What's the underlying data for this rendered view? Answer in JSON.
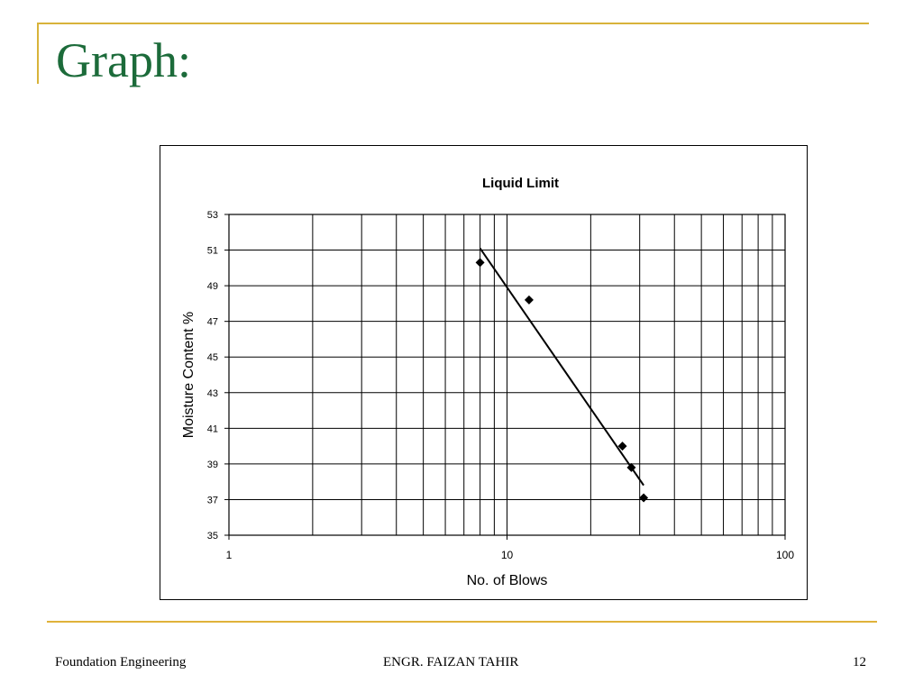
{
  "slide": {
    "title": "Graph:",
    "accent_color": "#d8b33a",
    "title_color": "#1c6b3a"
  },
  "footer": {
    "left": "Foundation Engineering",
    "center": "ENGR. FAIZAN TAHIR",
    "page_number": "12"
  },
  "chart_data": {
    "type": "scatter",
    "title": "Liquid Limit",
    "xlabel": "No. of Blows",
    "ylabel": "Moisture Content %",
    "x_scale": "log",
    "xlim": [
      1,
      100
    ],
    "ylim": [
      35,
      53
    ],
    "x_ticks": [
      1,
      10,
      100
    ],
    "y_ticks": [
      35,
      37,
      39,
      41,
      43,
      45,
      47,
      49,
      51,
      53
    ],
    "grid": true,
    "legend": "none",
    "series": [
      {
        "marker": "diamond",
        "x": [
          8,
          12,
          26,
          28,
          31
        ],
        "y": [
          50.3,
          48.2,
          40.0,
          38.8,
          37.1
        ]
      }
    ],
    "trendline": {
      "x": [
        8,
        31
      ],
      "y": [
        51.1,
        37.8
      ]
    }
  }
}
